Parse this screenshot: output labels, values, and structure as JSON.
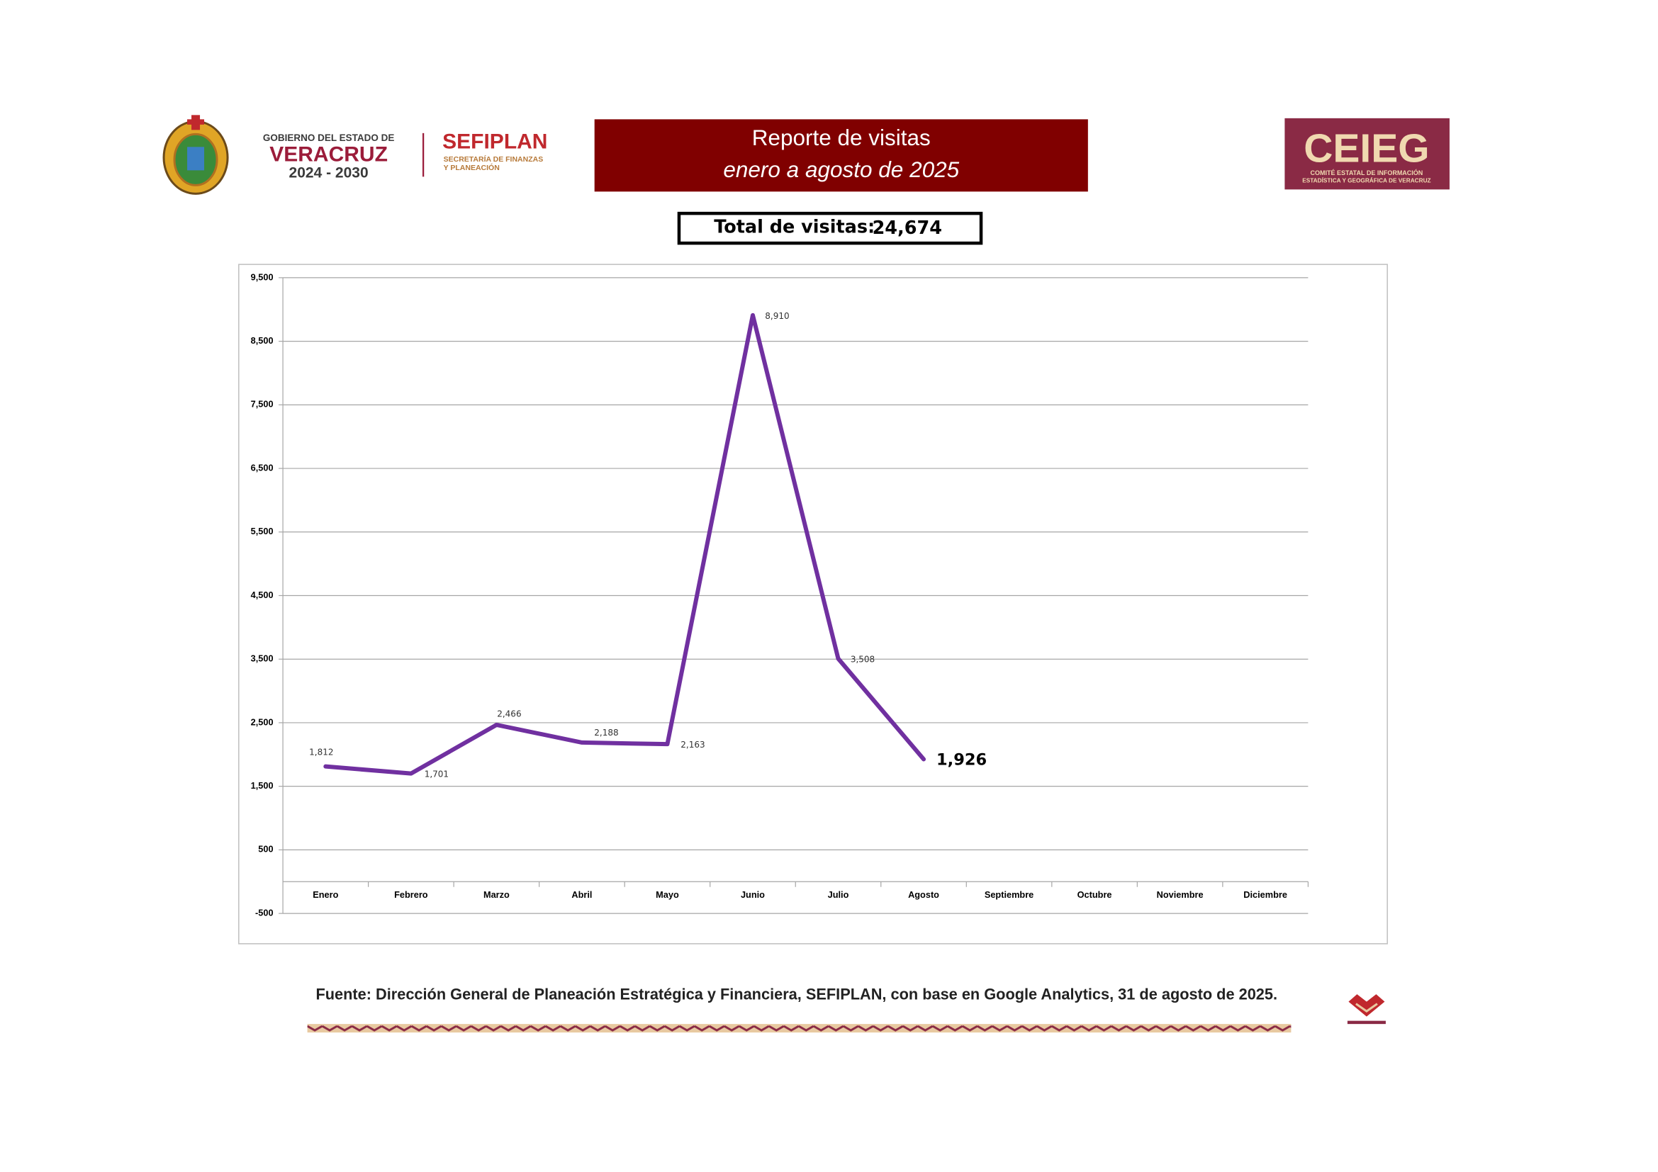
{
  "header": {
    "gov": [
      "GOBIERNO DEL ESTADO DE",
      "VERACRUZ",
      "2024 - 2030"
    ],
    "sefiplan": {
      "name": "SEFIPLAN",
      "sub": [
        "SECRETARÍA DE FINANZAS",
        "Y PLANEACIÓN"
      ]
    },
    "report_title": [
      "Reporte de visitas",
      "enero a agosto de 2025"
    ],
    "ceieg": {
      "name": "CEIEG",
      "sub": [
        "COMITÉ ESTATAL DE INFORMACIÓN",
        "ESTADÍSTICA Y GEOGRÁFICA DE VERACRUZ"
      ]
    }
  },
  "total": {
    "label": "Total de visitas:",
    "value": "24,674"
  },
  "chart_data": {
    "type": "line",
    "categories": [
      "Enero",
      "Febrero",
      "Marzo",
      "Abril",
      "Mayo",
      "Junio",
      "Julio",
      "Agosto",
      "Septiembre",
      "Octubre",
      "Noviembre",
      "Diciembre"
    ],
    "values": [
      1812,
      1701,
      2466,
      2188,
      2163,
      8910,
      3508,
      1926,
      null,
      null,
      null,
      null
    ],
    "value_labels": [
      "1,812",
      "1,701",
      "2,466",
      "2,188",
      "2,163",
      "8,910",
      "3,508",
      "1,926",
      null,
      null,
      null,
      null
    ],
    "color": "#7030a0",
    "ylim": [
      -500,
      9500
    ],
    "yticks": [
      -500,
      500,
      {
        "value": 1500,
        "label": "1,500"
      },
      {
        "value": 2500,
        "label": "2,500"
      },
      {
        "value": 3500,
        "label": "3,500"
      },
      {
        "value": 4500,
        "label": "4,500"
      },
      {
        "value": 5500,
        "label": "5,500"
      },
      {
        "value": 6500,
        "label": "6,500"
      },
      {
        "value": 7500,
        "label": "7,500"
      },
      {
        "value": 8500,
        "label": "8,500"
      },
      {
        "value": 9500,
        "label": "9,500"
      }
    ],
    "grid": true
  },
  "source": "Fuente: Dirección General de Planeación Estratégica y Financiera, SEFIPLAN, con base en Google Analytics, 31 de agosto de 2025."
}
